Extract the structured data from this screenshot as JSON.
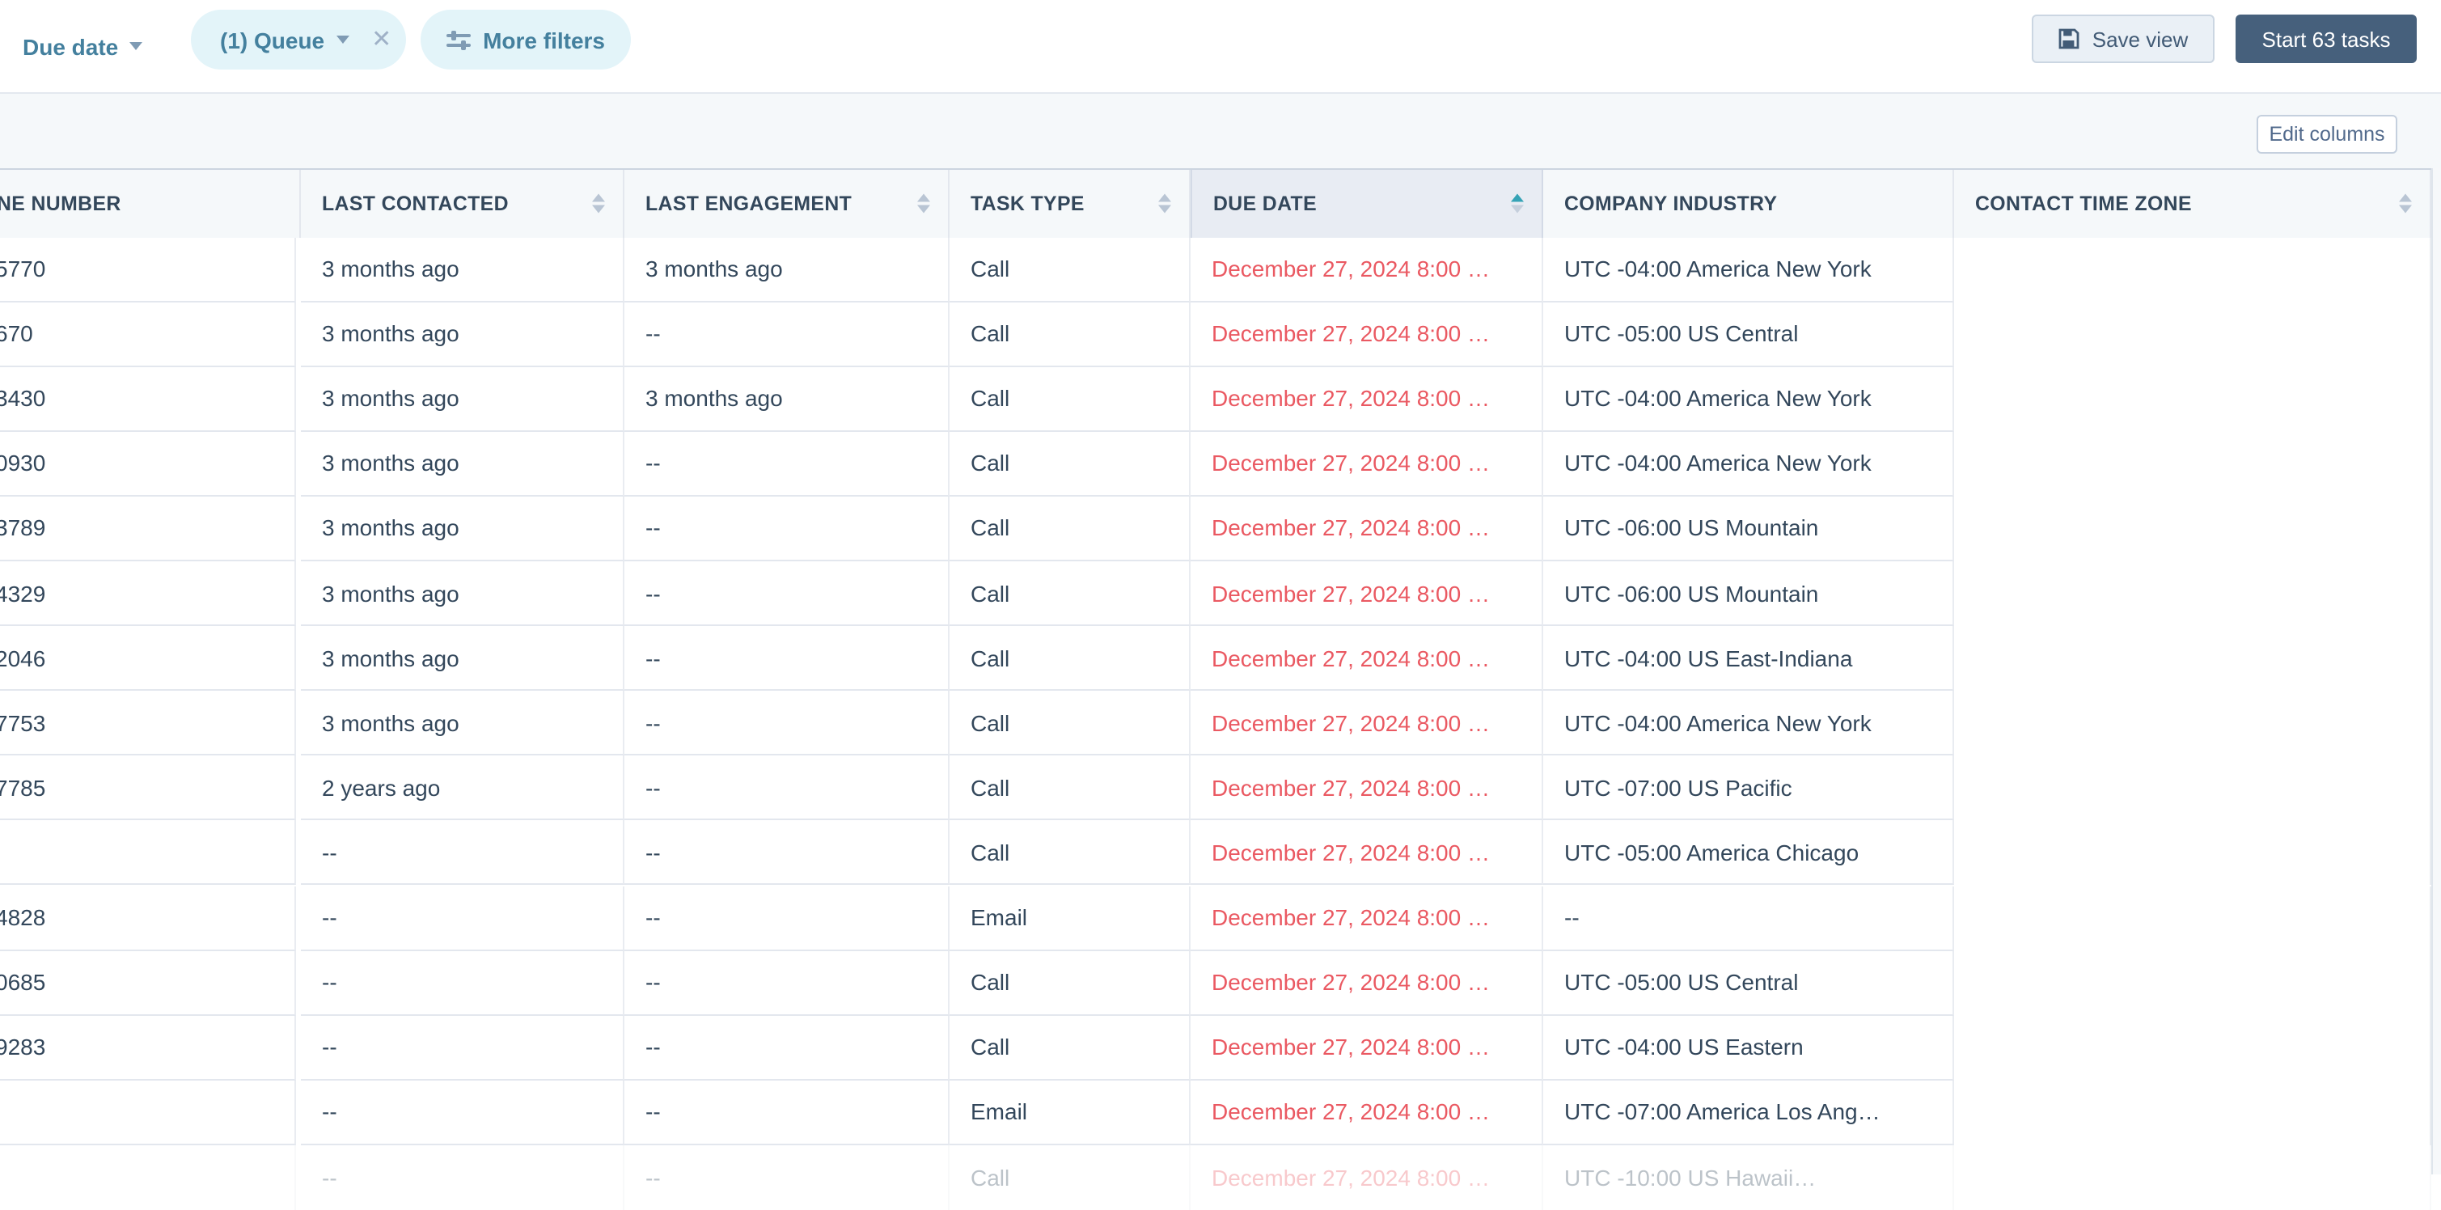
{
  "colors": {
    "accent_teal": "#44809e",
    "sort_active_teal": "#35a3b6",
    "navy_text": "#33475b",
    "due_date_red": "#ea5962",
    "start_button_slate": "#46607c",
    "header_bg": "#f5f8fa",
    "sorted_column_header_bg": "#e8ecf3"
  },
  "toolbar": {
    "due_date_filter_label": "Due date",
    "queue_chip_label": "(1) Queue",
    "queue_chip_close_glyph": "✕",
    "more_filters_label": "More filters",
    "save_view_label": "Save view",
    "start_tasks_label": "Start 63 tasks"
  },
  "view_bar": {
    "edit_columns_label": "Edit columns"
  },
  "table": {
    "columns": [
      {
        "key": "phone",
        "label": "NE NUMBER",
        "sortable": false
      },
      {
        "key": "last_contacted",
        "label": "LAST CONTACTED",
        "sortable": true
      },
      {
        "key": "last_engagement",
        "label": "LAST ENGAGEMENT",
        "sortable": true
      },
      {
        "key": "task_type",
        "label": "TASK TYPE",
        "sortable": true
      },
      {
        "key": "due_date",
        "label": "DUE DATE",
        "sortable": true,
        "sorted": "asc"
      },
      {
        "key": "company_industry",
        "label": "COMPANY INDUSTRY",
        "sortable": false
      },
      {
        "key": "contact_time_zone",
        "label": "CONTACT TIME ZONE",
        "sortable": true
      }
    ],
    "rows": [
      {
        "phone": "5770",
        "last_contacted": "3 months ago",
        "last_engagement": "3 months ago",
        "task_type": "Call",
        "due_date": "December 27, 2024 8:00 …",
        "company_industry": "UTC -04:00 America New York",
        "contact_time_zone": ""
      },
      {
        "phone": "670",
        "last_contacted": "3 months ago",
        "last_engagement": "--",
        "task_type": "Call",
        "due_date": "December 27, 2024 8:00 …",
        "company_industry": "UTC -05:00 US Central",
        "contact_time_zone": ""
      },
      {
        "phone": "3430",
        "last_contacted": "3 months ago",
        "last_engagement": "3 months ago",
        "task_type": "Call",
        "due_date": "December 27, 2024 8:00 …",
        "company_industry": "UTC -04:00 America New York",
        "contact_time_zone": ""
      },
      {
        "phone": "0930",
        "last_contacted": "3 months ago",
        "last_engagement": "--",
        "task_type": "Call",
        "due_date": "December 27, 2024 8:00 …",
        "company_industry": "UTC -04:00 America New York",
        "contact_time_zone": ""
      },
      {
        "phone": "3789",
        "last_contacted": "3 months ago",
        "last_engagement": "--",
        "task_type": "Call",
        "due_date": "December 27, 2024 8:00 …",
        "company_industry": "UTC -06:00 US Mountain",
        "contact_time_zone": ""
      },
      {
        "phone": "4329",
        "last_contacted": "3 months ago",
        "last_engagement": "--",
        "task_type": "Call",
        "due_date": "December 27, 2024 8:00 …",
        "company_industry": "UTC -06:00 US Mountain",
        "contact_time_zone": ""
      },
      {
        "phone": "2046",
        "last_contacted": "3 months ago",
        "last_engagement": "--",
        "task_type": "Call",
        "due_date": "December 27, 2024 8:00 …",
        "company_industry": "UTC -04:00 US East-Indiana",
        "contact_time_zone": ""
      },
      {
        "phone": "7753",
        "last_contacted": "3 months ago",
        "last_engagement": "--",
        "task_type": "Call",
        "due_date": "December 27, 2024 8:00 …",
        "company_industry": "UTC -04:00 America New York",
        "contact_time_zone": ""
      },
      {
        "phone": "7785",
        "last_contacted": "2 years ago",
        "last_engagement": "--",
        "task_type": "Call",
        "due_date": "December 27, 2024 8:00 …",
        "company_industry": "UTC -07:00 US Pacific",
        "contact_time_zone": ""
      },
      {
        "phone": "",
        "last_contacted": "--",
        "last_engagement": "--",
        "task_type": "Call",
        "due_date": "December 27, 2024 8:00 …",
        "company_industry": "UTC -05:00 America Chicago",
        "contact_time_zone": ""
      },
      {
        "phone": "4828",
        "last_contacted": "--",
        "last_engagement": "--",
        "task_type": "Email",
        "due_date": "December 27, 2024 8:00 …",
        "company_industry": "--",
        "contact_time_zone": ""
      },
      {
        "phone": "0685",
        "last_contacted": "--",
        "last_engagement": "--",
        "task_type": "Call",
        "due_date": "December 27, 2024 8:00 …",
        "company_industry": "UTC -05:00 US Central",
        "contact_time_zone": ""
      },
      {
        "phone": "9283",
        "last_contacted": "--",
        "last_engagement": "--",
        "task_type": "Call",
        "due_date": "December 27, 2024 8:00 …",
        "company_industry": "UTC -04:00 US Eastern",
        "contact_time_zone": ""
      },
      {
        "phone": "",
        "last_contacted": "--",
        "last_engagement": "--",
        "task_type": "Email",
        "due_date": "December 27, 2024 8:00 …",
        "company_industry": "UTC -07:00 America Los Ang…",
        "contact_time_zone": ""
      },
      {
        "phone": "",
        "last_contacted": "--",
        "last_engagement": "--",
        "task_type": "Call",
        "due_date": "December 27, 2024 8:00 …",
        "company_industry": "UTC -10:00 US Hawaii…",
        "contact_time_zone": "",
        "faded": true
      }
    ]
  }
}
